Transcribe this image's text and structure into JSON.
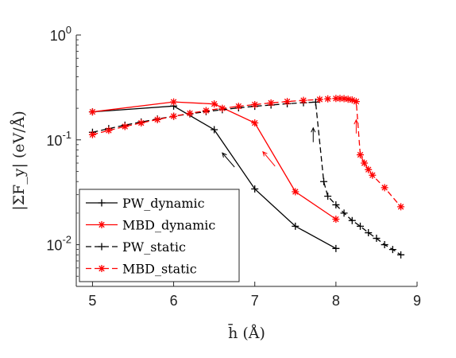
{
  "chart_data": {
    "type": "line",
    "xlabel": "h̄ (Å)",
    "ylabel": "|ΣF_y| (eV/Å)",
    "xlim": [
      4.8,
      9.0
    ],
    "ylim": [
      0.004,
      1.0
    ],
    "y_scale": "log",
    "x_ticks": [
      "5",
      "6",
      "7",
      "8",
      "9"
    ],
    "y_ticks": [
      {
        "base": "10",
        "exp": "0",
        "value": 1
      },
      {
        "base": "10",
        "exp": "-1",
        "value": 0.1
      },
      {
        "base": "10",
        "exp": "-2",
        "value": 0.01
      }
    ],
    "grid": false,
    "legend_position": "bottom-left",
    "series": [
      {
        "name": "PW_dynamic",
        "color": "#000000",
        "dash": "solid",
        "marker": "plus",
        "x": [
          5.0,
          6.0,
          6.5,
          7.0,
          7.5,
          8.0
        ],
        "y": [
          0.185,
          0.21,
          0.125,
          0.034,
          0.015,
          0.0092
        ]
      },
      {
        "name": "MBD_dynamic",
        "color": "#ff0000",
        "dash": "solid",
        "marker": "star",
        "x": [
          5.0,
          6.0,
          6.5,
          7.0,
          7.5,
          8.0
        ],
        "y": [
          0.185,
          0.23,
          0.22,
          0.145,
          0.032,
          0.0175
        ]
      },
      {
        "name": "PW_static",
        "color": "#000000",
        "dash": "dashed",
        "marker": "plus",
        "x": [
          5.0,
          5.2,
          5.4,
          5.6,
          5.8,
          6.0,
          6.2,
          6.4,
          6.6,
          6.8,
          7.0,
          7.2,
          7.4,
          7.6,
          7.75,
          7.85,
          7.9,
          8.0,
          8.1,
          8.2,
          8.3,
          8.4,
          8.5,
          8.6,
          8.7,
          8.8
        ],
        "y": [
          0.118,
          0.128,
          0.138,
          0.148,
          0.158,
          0.168,
          0.177,
          0.186,
          0.194,
          0.202,
          0.209,
          0.215,
          0.221,
          0.226,
          0.229,
          0.04,
          0.029,
          0.024,
          0.02,
          0.017,
          0.015,
          0.013,
          0.0115,
          0.01,
          0.009,
          0.008
        ]
      },
      {
        "name": "MBD_static",
        "color": "#ff0000",
        "dash": "dashed",
        "marker": "star",
        "x": [
          5.0,
          5.2,
          5.4,
          5.6,
          5.8,
          6.0,
          6.2,
          6.4,
          6.6,
          6.8,
          7.0,
          7.2,
          7.4,
          7.6,
          7.8,
          7.9,
          8.0,
          8.05,
          8.1,
          8.15,
          8.2,
          8.25,
          8.3,
          8.35,
          8.4,
          8.45,
          8.6,
          8.8
        ],
        "y": [
          0.112,
          0.123,
          0.134,
          0.145,
          0.156,
          0.168,
          0.179,
          0.19,
          0.2,
          0.209,
          0.217,
          0.225,
          0.232,
          0.238,
          0.243,
          0.246,
          0.248,
          0.248,
          0.247,
          0.244,
          0.24,
          0.232,
          0.072,
          0.06,
          0.052,
          0.046,
          0.035,
          0.023
        ]
      }
    ],
    "annotations": [
      {
        "type": "arrow",
        "color": "#000000",
        "from": [
          6.75,
          0.055
        ],
        "to": [
          6.6,
          0.075
        ]
      },
      {
        "type": "arrow",
        "color": "#ff0000",
        "from": [
          7.25,
          0.056
        ],
        "to": [
          7.1,
          0.077
        ]
      },
      {
        "type": "arrow",
        "color": "#000000",
        "from": [
          7.72,
          0.095
        ],
        "to": [
          7.72,
          0.13
        ]
      },
      {
        "type": "arrow",
        "color": "#ff0000",
        "from": [
          8.25,
          0.115
        ],
        "to": [
          8.25,
          0.155
        ]
      }
    ]
  }
}
